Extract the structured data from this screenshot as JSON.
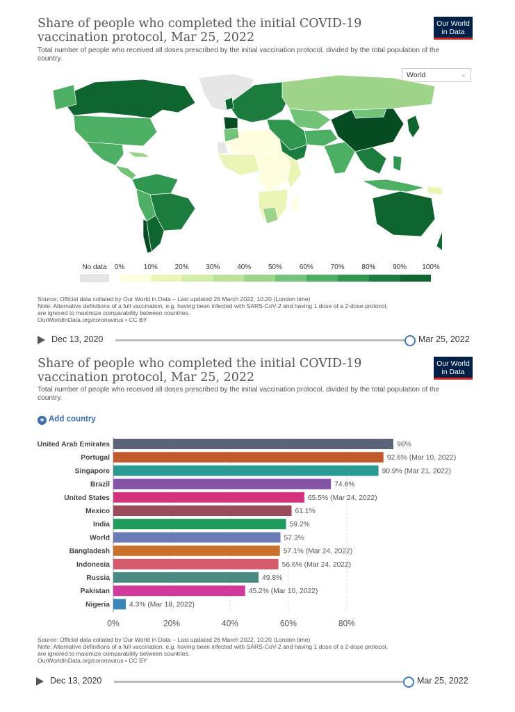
{
  "map_panel": {
    "title": "Share of people who completed the initial COVID-19 vaccination protocol, Mar 25, 2022",
    "subtitle": "Total number of people who received all doses prescribed by the initial vaccination protocol, divided by the total population of the country.",
    "logo": "Our World in Data",
    "region_select": "World",
    "legend": {
      "no_data_label": "No data",
      "ticks": [
        "0%",
        "10%",
        "20%",
        "30%",
        "40%",
        "50%",
        "60%",
        "70%",
        "80%",
        "90%",
        "100%"
      ],
      "colors": [
        "#ffffe0",
        "#ebf5b5",
        "#d5edaa",
        "#bde29a",
        "#9ed38a",
        "#73c379",
        "#4caf63",
        "#2f964f",
        "#1c7c3d",
        "#0f652f",
        "#064c22"
      ],
      "no_data_color": "#e6e6e6"
    },
    "source_lines": [
      "Source: Official data collated by Our World in Data – Last updated 26 March 2022, 10:20 (London time)",
      "Note: Alternative definitions of a full vaccination, e.g. having been infected with SARS-CoV-2 and having 1 dose of a 2-dose protocol,",
      "are ignored to maximize comparability between countries.",
      "OurWorldInData.org/coronavirus • CC BY"
    ],
    "timeline": {
      "start": "Dec 13, 2020",
      "end": "Mar 25, 2022"
    }
  },
  "bar_panel": {
    "title": "Share of people who completed the initial COVID-19 vaccination protocol, Mar 25, 2022",
    "subtitle": "Total number of people who received all doses prescribed by the initial vaccination protocol, divided by the total population of the country.",
    "logo": "Our World in Data",
    "add_country": "Add country",
    "source_lines": [
      "Source: Official data collated by Our World in Data – Last updated 26 March 2022, 10:20 (London time)",
      "Note: Alternative definitions of a full vaccination, e.g. having been infected with SARS-CoV-2 and having 1 dose of a 2-dose protocol,",
      "are ignored to maximize comparability between countries.",
      "OurWorldInData.org/coronavirus • CC BY"
    ],
    "timeline": {
      "start": "Dec 13, 2020",
      "end": "Mar 25, 2022"
    }
  },
  "chart_data": {
    "type": "bar",
    "orientation": "horizontal",
    "categories": [
      "United Arab Emirates",
      "Portugal",
      "Singapore",
      "Brazil",
      "United States",
      "Mexico",
      "India",
      "World",
      "Bangladesh",
      "Indonesia",
      "Russia",
      "Pakistan",
      "Nigeria"
    ],
    "values": [
      96,
      92.6,
      90.9,
      74.6,
      65.5,
      61.1,
      59.2,
      57.3,
      57.1,
      56.6,
      49.8,
      45.2,
      4.3
    ],
    "value_labels": [
      "96%",
      "92.6% (Mar 10, 2022)",
      "90.9% (Mar 21, 2022)",
      "74.6%",
      "65.5% (Mar 24, 2022)",
      "61.1%",
      "59.2%",
      "57.3%",
      "57.1% (Mar 24, 2022)",
      "56.6% (Mar 24, 2022)",
      "49.8%",
      "45.2% (Mar 10, 2022)",
      "4.3% (Mar 18, 2022)"
    ],
    "colors": [
      "#5b6378",
      "#c05a2b",
      "#2a9b93",
      "#8454a8",
      "#d6337f",
      "#9b4a5a",
      "#1f9b5b",
      "#6a7bb5",
      "#c9702a",
      "#d65a6a",
      "#4a8a80",
      "#d03a9a",
      "#3a86b8"
    ],
    "xticks": [
      "0%",
      "20%",
      "40%",
      "60%",
      "80%"
    ],
    "xtick_values": [
      0,
      20,
      40,
      60,
      80
    ],
    "xlim": [
      0,
      96
    ],
    "grid": true
  }
}
